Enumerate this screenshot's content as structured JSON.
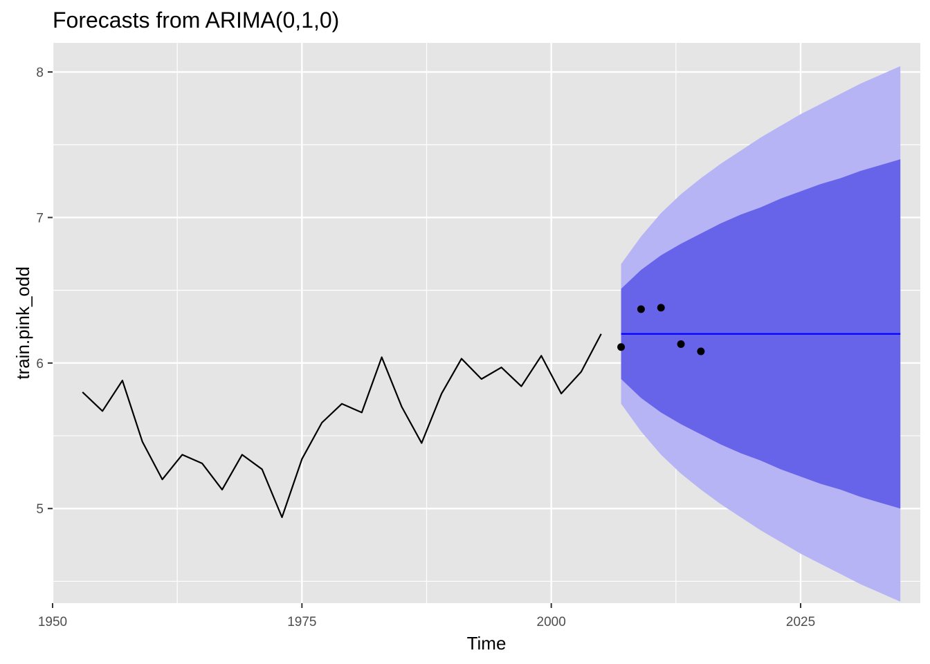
{
  "chart_data": {
    "type": "line",
    "title": "Forecasts from ARIMA(0,1,0)",
    "xlabel": "Time",
    "ylabel": "train.pink_odd",
    "xlim": [
      1950,
      2037
    ],
    "ylim": [
      4.35,
      8.2
    ],
    "x_ticks": [
      {
        "value": 1950,
        "label": "1950"
      },
      {
        "value": 1975,
        "label": "1975"
      },
      {
        "value": 2000,
        "label": "2000"
      },
      {
        "value": 2025,
        "label": "2025"
      }
    ],
    "y_ticks": [
      {
        "value": 5,
        "label": "5"
      },
      {
        "value": 6,
        "label": "6"
      },
      {
        "value": 7,
        "label": "7"
      },
      {
        "value": 8,
        "label": "8"
      }
    ],
    "grid": true,
    "colors": {
      "panel": "#e5e5e5",
      "grid": "#ffffff",
      "history_line": "#000000",
      "forecast_line": "#0000ff",
      "band_80": "#6864ea",
      "band_95": "#b6b4f5",
      "points": "#000000"
    },
    "history": {
      "x": [
        1953,
        1955,
        1957,
        1959,
        1961,
        1963,
        1965,
        1967,
        1969,
        1971,
        1973,
        1975,
        1977,
        1979,
        1981,
        1983,
        1985,
        1987,
        1989,
        1991,
        1993,
        1995,
        1997,
        1999,
        2001,
        2003,
        2005
      ],
      "y": [
        5.8,
        5.67,
        5.88,
        5.46,
        5.2,
        5.37,
        5.31,
        5.13,
        5.37,
        5.27,
        4.94,
        5.34,
        5.59,
        5.72,
        5.66,
        6.04,
        5.7,
        5.45,
        5.79,
        6.03,
        5.89,
        5.97,
        5.84,
        6.05,
        5.79,
        5.94,
        6.2
      ]
    },
    "forecast": {
      "x": [
        2007,
        2009,
        2011,
        2013,
        2015,
        2017,
        2019,
        2021,
        2023,
        2025,
        2027,
        2029,
        2031,
        2033,
        2035
      ],
      "mean": [
        6.2,
        6.2,
        6.2,
        6.2,
        6.2,
        6.2,
        6.2,
        6.2,
        6.2,
        6.2,
        6.2,
        6.2,
        6.2,
        6.2,
        6.2
      ],
      "lo80": [
        5.89,
        5.76,
        5.66,
        5.58,
        5.51,
        5.44,
        5.38,
        5.33,
        5.27,
        5.22,
        5.17,
        5.13,
        5.08,
        5.04,
        5.0
      ],
      "hi80": [
        6.51,
        6.64,
        6.74,
        6.82,
        6.89,
        6.96,
        7.02,
        7.07,
        7.13,
        7.18,
        7.23,
        7.27,
        7.32,
        7.36,
        7.4
      ],
      "lo95": [
        5.72,
        5.53,
        5.37,
        5.24,
        5.13,
        5.03,
        4.94,
        4.85,
        4.77,
        4.69,
        4.62,
        4.55,
        4.48,
        4.42,
        4.36
      ],
      "hi95": [
        6.68,
        6.87,
        7.03,
        7.16,
        7.27,
        7.37,
        7.46,
        7.55,
        7.63,
        7.71,
        7.78,
        7.85,
        7.92,
        7.98,
        8.04
      ]
    },
    "points": {
      "x": [
        2007,
        2009,
        2011,
        2013,
        2015
      ],
      "y": [
        6.11,
        6.37,
        6.38,
        6.13,
        6.08
      ]
    }
  }
}
